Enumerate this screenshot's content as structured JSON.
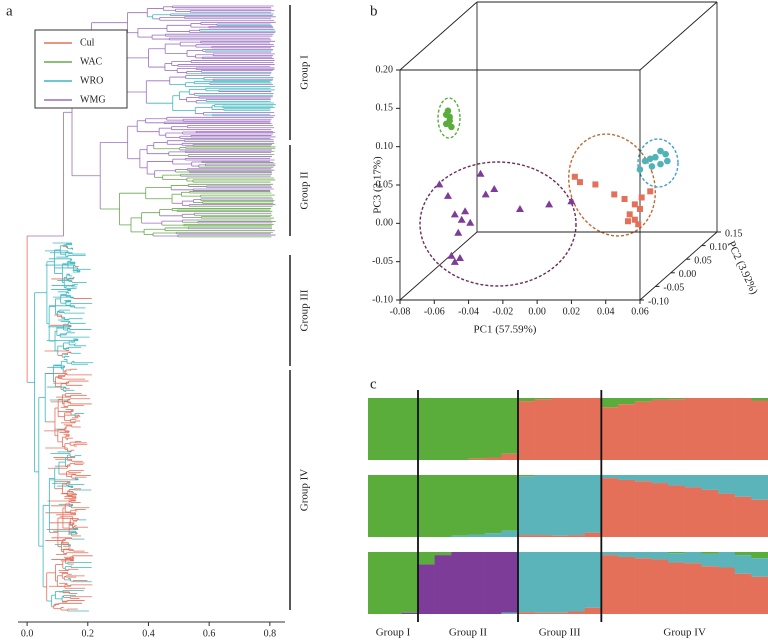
{
  "chart_data": [
    {
      "type": "tree",
      "panel": "a",
      "xlim": [
        -0.03,
        0.85
      ],
      "xticks": [
        {
          "value": 0,
          "label": "0.0"
        },
        0.2,
        0.4,
        0.6,
        0.8
      ],
      "series": [
        {
          "name": "Cul",
          "color": "#e4705a"
        },
        {
          "name": "WAC",
          "color": "#6aa84f"
        },
        {
          "name": "WRO",
          "color": "#3bb8bf"
        },
        {
          "name": "WMG",
          "color": "#9b6fc0"
        }
      ],
      "groups": [
        "Group I",
        "Group II",
        "Group III",
        "Group IV"
      ]
    },
    {
      "type": "scatter3d",
      "panel": "b",
      "xlabel": "PC1 (57.59%)",
      "ylabel": "PC3 (2.17%)",
      "zlabel": "PC2 (3.92%)",
      "xlim": [
        -0.08,
        0.06
      ],
      "ylim": [
        -0.1,
        0.2
      ],
      "zlim": [
        -0.1,
        0.15
      ],
      "xticks": [
        -0.08,
        -0.06,
        -0.04,
        -0.02,
        {
          "value": 0,
          "label": "0.00"
        },
        0.02,
        0.04,
        0.06
      ],
      "yticks": [
        {
          "value": -0.1,
          "label": "-0.10"
        },
        -0.05,
        {
          "value": 0,
          "label": "0.00"
        },
        0.05,
        {
          "value": 0.1,
          "label": "0.10"
        },
        0.15,
        {
          "value": 0.2,
          "label": "0.20"
        }
      ],
      "zticks": [
        {
          "value": -0.1,
          "label": "-0.10"
        },
        -0.05,
        {
          "value": 0,
          "label": "0.00"
        },
        0.05,
        {
          "value": 0.1,
          "label": "0.10"
        },
        0.15
      ],
      "series": [
        {
          "color": "#e4705a",
          "marker": "square",
          "x": [
            0.013,
            0.016,
            0.025,
            0.036,
            0.042,
            0.045,
            0.048,
            0.05,
            0.051,
            0.048,
            0.052,
            0.044,
            0.057
          ],
          "y": [
            0.043,
            0.036,
            0.033,
            0.02,
            0.014,
            -0.006,
            -0.013,
            -0.019,
            0.001,
            0.007,
            0.016,
            -0.015,
            0.024
          ],
          "z": [
            -0.05,
            -0.05,
            -0.05,
            -0.05,
            -0.05,
            -0.05,
            -0.05,
            -0.05,
            -0.05,
            -0.05,
            -0.05,
            -0.05,
            -0.05
          ]
        },
        {
          "color": "#5aad3a",
          "marker": "circle",
          "x": [
            -0.061,
            -0.06,
            -0.062,
            -0.059,
            -0.06,
            -0.062
          ],
          "y": [
            0.129,
            0.121,
            0.112,
            0.108,
            0.116,
            0.124
          ],
          "z": [
            -0.05,
            -0.05,
            -0.05,
            -0.05,
            -0.05,
            -0.05
          ]
        },
        {
          "color": "#4fb3b8",
          "marker": "circle",
          "x": [
            0.039,
            0.042,
            0.045,
            0.036,
            0.048,
            0.045,
            0.033,
            0.049,
            0.04
          ],
          "y": [
            0.031,
            0.033,
            0.024,
            0.028,
            0.037,
            0.041,
            0.017,
            0.028,
            0.021
          ],
          "z": [
            0.05,
            0.05,
            0.05,
            0.05,
            0.05,
            0.05,
            0.05,
            0.05,
            0.05
          ]
        },
        {
          "color": "#7d3c98",
          "marker": "triangle",
          "x": [
            -0.066,
            -0.061,
            -0.051,
            -0.057,
            -0.053,
            -0.048,
            -0.055,
            -0.059,
            -0.057,
            -0.054,
            -0.042,
            -0.039,
            -0.034,
            -0.019,
            -0.002,
            0.011
          ],
          "y": [
            0.033,
            0.018,
            -0.002,
            -0.006,
            -0.013,
            -0.017,
            -0.03,
            -0.06,
            -0.068,
            -0.063,
            0.047,
            0.02,
            0.027,
            0.001,
            0.007,
            0.011
          ],
          "z": [
            -0.05,
            -0.05,
            -0.05,
            -0.05,
            -0.05,
            -0.05,
            -0.05,
            -0.05,
            -0.05,
            -0.05,
            -0.05,
            -0.05,
            -0.05,
            -0.05,
            -0.05,
            -0.05
          ]
        }
      ]
    },
    {
      "type": "structure",
      "panel": "c",
      "ylim": [
        0,
        1
      ],
      "groups": [
        "Group I",
        "Group II",
        "Group III",
        "Group IV"
      ],
      "rows": [
        {
          "series": [
            {
              "color": "#5aad3a",
              "values": [
                1,
                1,
                1,
                1,
                1,
                1,
                0.98,
                0.96,
                0.9,
                0.05,
                0.02,
                0,
                0,
                0,
                0.15,
                0.1,
                0.06,
                0.03,
                0.02,
                0,
                0,
                0,
                0,
                0.04
              ]
            },
            {
              "color": "#e4705a",
              "values": [
                0,
                0,
                0,
                0,
                0,
                0,
                0.02,
                0.04,
                0.1,
                0.95,
                0.98,
                1,
                1,
                1,
                0.85,
                0.9,
                0.94,
                0.97,
                0.98,
                1,
                1,
                1,
                1,
                0.96
              ]
            }
          ]
        },
        {
          "series": [
            {
              "color": "#5aad3a",
              "values": [
                1,
                1,
                1,
                1,
                1,
                0.98,
                0.96,
                0.94,
                0.9,
                0.02,
                0,
                0,
                0,
                0,
                0,
                0,
                0,
                0,
                0,
                0,
                0,
                0,
                0,
                0
              ]
            },
            {
              "color": "#5ab4b9",
              "values": [
                0,
                0,
                0,
                0,
                0,
                0.02,
                0.04,
                0.06,
                0.1,
                0.95,
                0.97,
                0.98,
                0.97,
                0.93,
                0.05,
                0.08,
                0.1,
                0.13,
                0.17,
                0.2,
                0.24,
                0.3,
                0.35,
                0.4
              ]
            },
            {
              "color": "#e4705a",
              "values": [
                0,
                0,
                0,
                0,
                0,
                0,
                0,
                0,
                0,
                0.03,
                0.03,
                0.02,
                0.03,
                0.07,
                0.95,
                0.92,
                0.9,
                0.87,
                0.83,
                0.8,
                0.76,
                0.7,
                0.65,
                0.6
              ]
            }
          ]
        },
        {
          "series": [
            {
              "color": "#5aad3a",
              "values": [
                1,
                1,
                0.98,
                0.2,
                0.05,
                0,
                0,
                0,
                0,
                0,
                0,
                0,
                0,
                0,
                0,
                0,
                0,
                0,
                0.02,
                0,
                0.03,
                0,
                0.05,
                0.1
              ]
            },
            {
              "color": "#7d3c98",
              "values": [
                0,
                0,
                0.02,
                0.8,
                0.95,
                1,
                1,
                1,
                0.98,
                0,
                0,
                0,
                0,
                0,
                0,
                0,
                0,
                0,
                0,
                0,
                0,
                0,
                0,
                0
              ]
            },
            {
              "color": "#5ab4b9",
              "values": [
                0,
                0,
                0,
                0,
                0,
                0,
                0,
                0,
                0.02,
                0.97,
                0.98,
                0.98,
                0.96,
                0.9,
                0.05,
                0.08,
                0.1,
                0.12,
                0.15,
                0.18,
                0.2,
                0.25,
                0.3,
                0.3
              ]
            },
            {
              "color": "#e4705a",
              "values": [
                0,
                0,
                0,
                0,
                0,
                0,
                0,
                0,
                0,
                0.03,
                0.02,
                0.02,
                0.04,
                0.1,
                0.95,
                0.92,
                0.9,
                0.88,
                0.83,
                0.82,
                0.77,
                0.75,
                0.65,
                0.6
              ]
            }
          ]
        }
      ]
    }
  ]
}
